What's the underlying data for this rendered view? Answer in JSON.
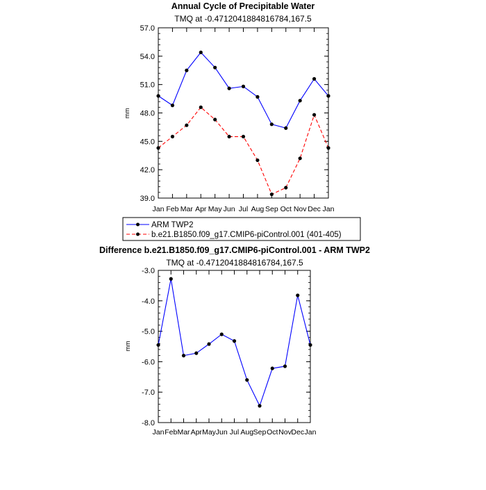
{
  "chart_data": [
    {
      "type": "line",
      "title": "Annual Cycle of Precipitable Water",
      "subtitle": "TMQ at  -0.4712041884816784,167.5",
      "ylabel": "mm",
      "ylim": [
        39.0,
        57.0
      ],
      "yticks": [
        "57.0",
        "54.0",
        "51.0",
        "48.0",
        "45.0",
        "42.0",
        "39.0"
      ],
      "yticks_values": [
        57.0,
        54.0,
        51.0,
        48.0,
        45.0,
        42.0,
        39.0
      ],
      "categories": [
        "Jan",
        "Feb",
        "Mar",
        "Apr",
        "May",
        "Jun",
        "Jul",
        "Aug",
        "Sep",
        "Oct",
        "Nov",
        "Dec",
        "Jan"
      ],
      "series": [
        {
          "name": "ARM TWP2",
          "color": "#0000ff",
          "dash": "solid",
          "values": [
            49.8,
            48.8,
            52.5,
            54.4,
            52.8,
            50.6,
            50.8,
            49.7,
            46.8,
            46.4,
            49.3,
            51.6,
            49.8
          ]
        },
        {
          "name": "b.e21.B1850.f09_g17.CMIP6-piControl.001 (401-405)",
          "color": "#ff0000",
          "dash": "dashed",
          "values": [
            44.3,
            45.5,
            46.7,
            48.6,
            47.3,
            45.5,
            45.5,
            43.0,
            39.4,
            40.1,
            43.2,
            47.8,
            44.3
          ]
        }
      ],
      "legend_position": "below"
    },
    {
      "type": "line",
      "title": "Difference b.e21.B1850.f09_g17.CMIP6-piControl.001 - ARM TWP2",
      "subtitle": "TMQ at  -0.4712041884816784,167.5",
      "ylabel": "mm",
      "ylim": [
        -8.0,
        -3.0
      ],
      "yticks": [
        "-3.0",
        "-4.0",
        "-5.0",
        "-6.0",
        "-7.0",
        "-8.0"
      ],
      "yticks_values": [
        -3.0,
        -4.0,
        -5.0,
        -6.0,
        -7.0,
        -8.0
      ],
      "categories": [
        "Jan",
        "Feb",
        "Mar",
        "Apr",
        "May",
        "Jun",
        "Jul",
        "Aug",
        "Sep",
        "Oct",
        "Nov",
        "Dec",
        "Jan"
      ],
      "series": [
        {
          "color": "#0000ff",
          "dash": "solid",
          "values": [
            -5.45,
            -3.28,
            -5.8,
            -5.72,
            -5.42,
            -5.1,
            -5.32,
            -6.6,
            -7.45,
            -6.22,
            -6.15,
            -3.82,
            -5.45
          ]
        }
      ]
    }
  ]
}
